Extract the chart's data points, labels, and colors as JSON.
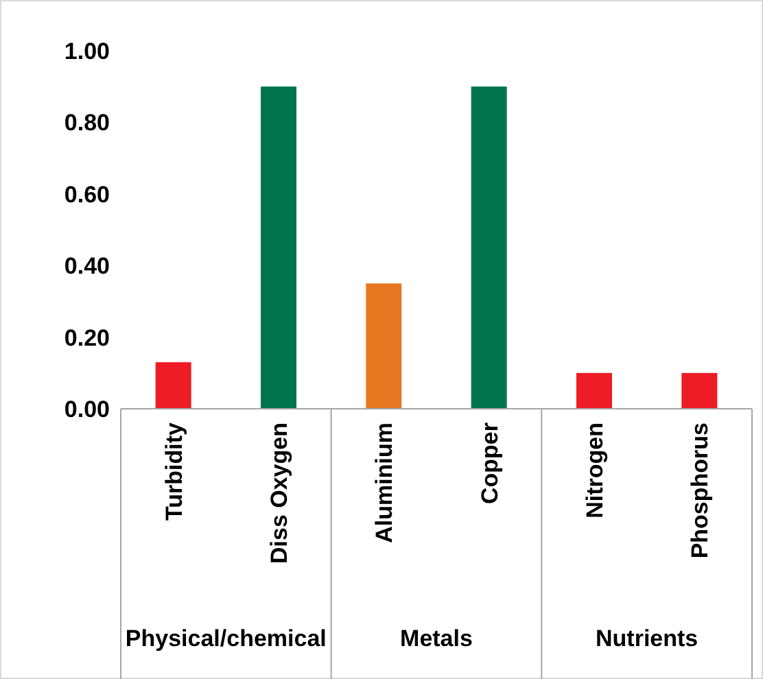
{
  "chart_data": {
    "type": "bar",
    "categories": [
      "Turbidity",
      "Diss Oxygen",
      "Aluminium",
      "Copper",
      "Nitrogen",
      "Phosphorus"
    ],
    "values": [
      0.13,
      0.9,
      0.35,
      0.9,
      0.1,
      0.1
    ],
    "colors": [
      "#ee1c25",
      "#00744c",
      "#e87722",
      "#00744c",
      "#ee1c25",
      "#ee1c25"
    ],
    "ylim": [
      0,
      1
    ],
    "yticks": [
      {
        "value": 0,
        "label": "0.00"
      },
      {
        "value": 0.2,
        "label": "0.20"
      },
      {
        "value": 0.4,
        "label": "0.40"
      },
      {
        "value": 0.6,
        "label": "0.60"
      },
      {
        "value": 0.8,
        "label": "0.80"
      },
      {
        "value": 1,
        "label": "1.00"
      }
    ],
    "annotations": [
      "Physical/chemical",
      "Metals",
      "Nutrients"
    ],
    "grid": false
  }
}
